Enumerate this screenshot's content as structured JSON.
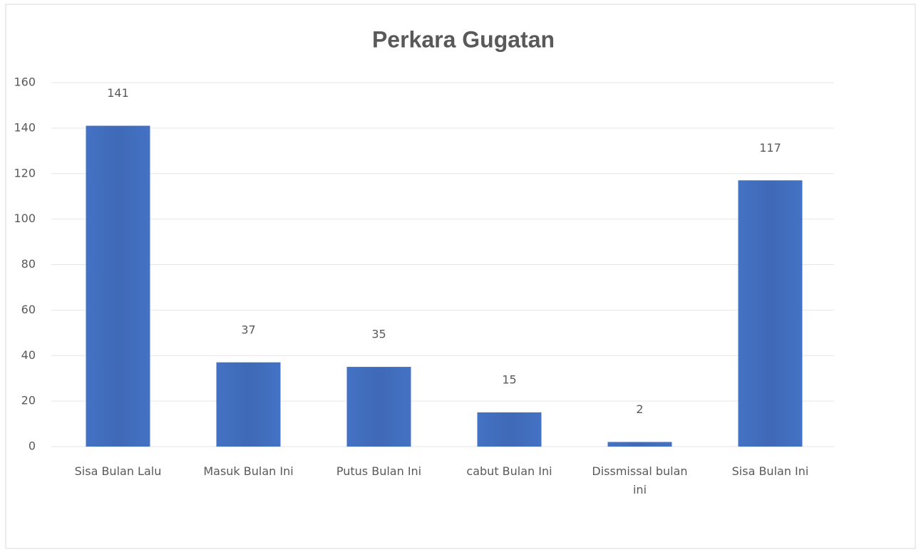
{
  "chart_data": {
    "type": "bar",
    "title": "Perkara Gugatan",
    "categories": [
      "Sisa Bulan Lalu",
      "Masuk Bulan Ini",
      "Putus Bulan Ini",
      "cabut Bulan Ini",
      "Dissmissal bulan ini",
      "Sisa Bulan Ini"
    ],
    "values": [
      141,
      37,
      35,
      15,
      2,
      117
    ],
    "color": "#4472c4",
    "ylim": [
      0,
      160
    ],
    "yticks": [
      0,
      20,
      40,
      60,
      80,
      100,
      120,
      140,
      160
    ],
    "grid": true
  }
}
